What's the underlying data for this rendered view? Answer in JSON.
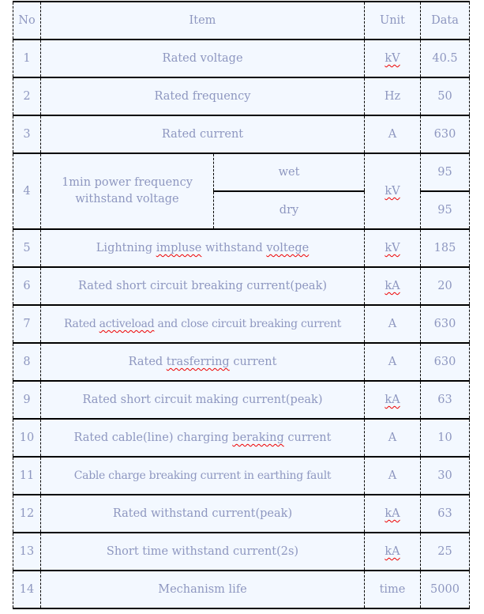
{
  "colors": {
    "text": "#8e97c0",
    "background": "#f3f8ff",
    "spellcheck": "#e00000"
  },
  "header": {
    "no": "No",
    "item": "Item",
    "unit": "Unit",
    "data": "Data"
  },
  "rows": [
    {
      "no": "1",
      "item": "Rated voltage",
      "unit": "kV",
      "data": "40.5",
      "flag": [],
      "unit_flag": true
    },
    {
      "no": "2",
      "item": "Rated frequency",
      "unit": "Hz",
      "data": "50",
      "flag": []
    },
    {
      "no": "3",
      "item": "Rated current",
      "unit": "A",
      "data": "630",
      "flag": []
    },
    {
      "no": "4",
      "item": "1min power frequency withstand voltage",
      "unit": "kV",
      "unit_flag": true,
      "sub": [
        {
          "label": "wet",
          "data": "95"
        },
        {
          "label": "dry",
          "data": "95"
        }
      ]
    },
    {
      "no": "5",
      "item": "Lightning impluse withstand voltege",
      "unit": "kV",
      "data": "185",
      "flag": [
        "impluse",
        "voltege"
      ],
      "unit_flag": true
    },
    {
      "no": "6",
      "item": "Rated short circuit breaking current(peak)",
      "unit": "kA",
      "data": "20",
      "flag": [],
      "unit_flag": true
    },
    {
      "no": "7",
      "item": "Rated activeload and close circuit breaking current",
      "unit": "A",
      "data": "630",
      "flag": [
        "activeload"
      ]
    },
    {
      "no": "8",
      "item": "Rated trasferring current",
      "unit": "A",
      "data": "630",
      "flag": [
        "trasferring"
      ]
    },
    {
      "no": "9",
      "item": "Rated short circuit making current(peak)",
      "unit": "kA",
      "data": "63",
      "flag": [],
      "unit_flag": true
    },
    {
      "no": "10",
      "item": "Rated cable(line) charging beraking current",
      "unit": "A",
      "data": "10",
      "flag": [
        "beraking"
      ]
    },
    {
      "no": "11",
      "item": "Cable charge breaking current in earthing fault",
      "unit": "A",
      "data": "30",
      "flag": []
    },
    {
      "no": "12",
      "item": "Rated withstand current(peak)",
      "unit": "kA",
      "data": "63",
      "flag": [],
      "unit_flag": true
    },
    {
      "no": "13",
      "item": "Short time withstand current(2s)",
      "unit": "kA",
      "data": "25",
      "flag": [],
      "unit_flag": true
    },
    {
      "no": "14",
      "item": "Mechanism life",
      "unit": "time",
      "data": "5000",
      "flag": []
    }
  ]
}
